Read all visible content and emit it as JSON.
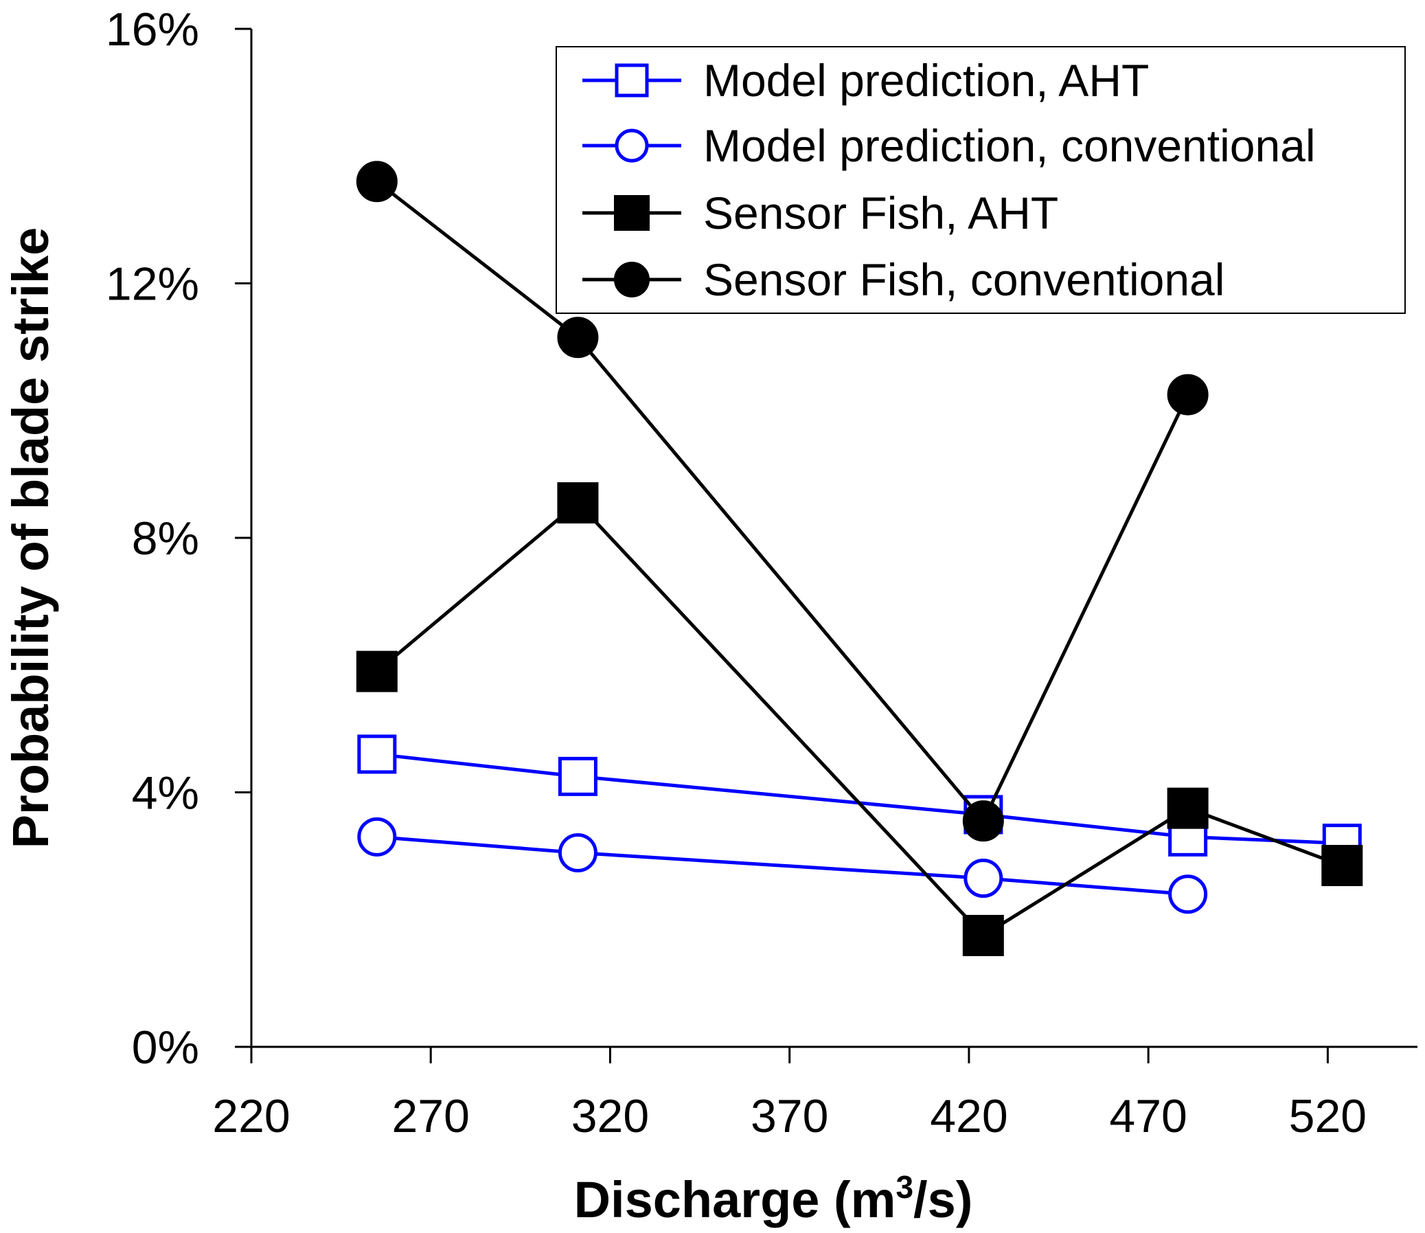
{
  "chart_data": {
    "type": "line",
    "xlabel": "Discharge (m",
    "xlabel_sup": "3",
    "xlabel_suffix": "/s)",
    "ylabel": "Probability of blade strike",
    "xlim": [
      220,
      545
    ],
    "ylim": [
      0,
      16
    ],
    "x_ticks": [
      220,
      270,
      320,
      370,
      420,
      470,
      520
    ],
    "x_tick_labels": [
      "220",
      "270",
      "320",
      "370",
      "420",
      "470",
      "520"
    ],
    "y_ticks": [
      0,
      4,
      8,
      12,
      16
    ],
    "y_tick_labels": [
      "0%",
      "4%",
      "8%",
      "12%",
      "16%"
    ],
    "legend_position": "top-right",
    "series": [
      {
        "name": "Model prediction, AHT",
        "color": "#0000ff",
        "marker": "square-open",
        "x": [
          255,
          311,
          424,
          481,
          524
        ],
        "y": [
          4.6,
          4.25,
          3.65,
          3.3,
          3.2
        ]
      },
      {
        "name": "Model prediction, conventional",
        "color": "#0000ff",
        "marker": "circle-open",
        "x": [
          255,
          311,
          424,
          481
        ],
        "y": [
          3.3,
          3.05,
          2.65,
          2.4
        ]
      },
      {
        "name": "Sensor Fish, AHT",
        "color": "#000000",
        "marker": "square-filled",
        "x": [
          255,
          311,
          424,
          481,
          524
        ],
        "y": [
          5.9,
          8.55,
          1.75,
          3.75,
          2.85
        ]
      },
      {
        "name": "Sensor Fish, conventional",
        "color": "#000000",
        "marker": "circle-filled",
        "x": [
          255,
          311,
          424,
          481
        ],
        "y": [
          13.6,
          11.15,
          3.55,
          10.25
        ]
      }
    ]
  }
}
